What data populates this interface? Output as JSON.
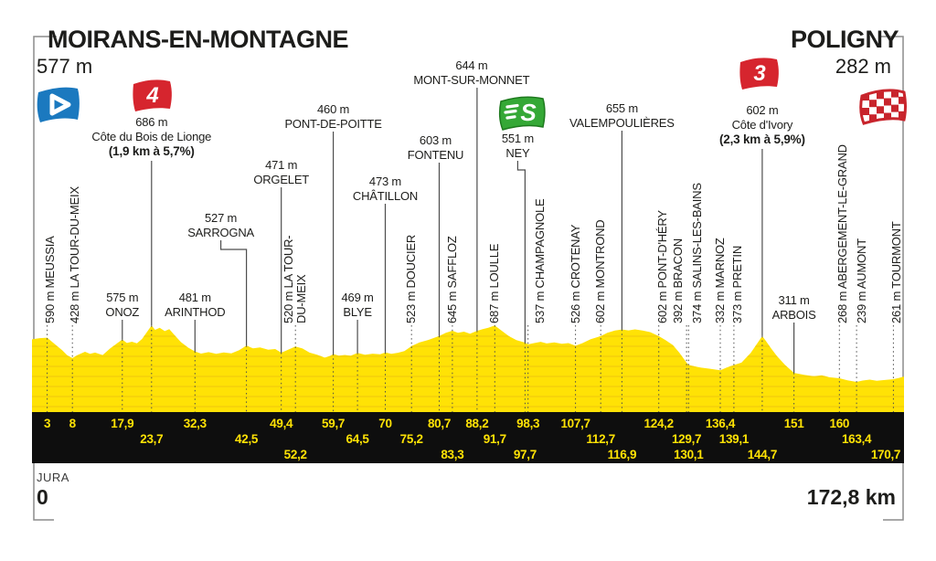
{
  "header": {
    "start": {
      "name": "MOIRANS-EN-MONTAGNE",
      "elevation": "577 m"
    },
    "finish": {
      "name": "POLIGNY",
      "elevation": "282 m"
    }
  },
  "footer": {
    "region": "JURA",
    "start_km": "0",
    "total_distance": "172,8 km"
  },
  "colors": {
    "profile_yellow": "#FFE205",
    "grid_yellow": "#EFC70E",
    "band_black": "#0E0E0E",
    "number_yellow": "#FFE205",
    "text": "#1D1D1B",
    "leader": "#4D4D4D",
    "frame": "#8C8C8C",
    "flag_red": "#D6252E",
    "flag_blue": "#1B79BF",
    "flag_green": "#35A836",
    "white": "#FFFFFF"
  },
  "icons": [
    {
      "name": "depart-flag",
      "glyph": "play-triangle",
      "color_key": "flag_blue"
    },
    {
      "name": "category-4-flag",
      "label": "4",
      "color_key": "flag_red"
    },
    {
      "name": "sprint-flag",
      "label": "S",
      "color_key": "flag_green"
    },
    {
      "name": "category-3-flag",
      "label": "3",
      "color_key": "flag_red"
    },
    {
      "name": "finish-flag",
      "glyph": "checkered",
      "color_key": "flag_red"
    }
  ],
  "chart_data": {
    "type": "area",
    "title": "Stage profile — Moirans-en-Montagne to Poligny (Jura)",
    "x_unit": "km",
    "y_unit": "m",
    "total_km": 172.8,
    "start_elevation_m": 577,
    "finish_elevation_m": 282,
    "waypoints": [
      {
        "name": "MEUSSIA",
        "elev": "590 m",
        "km": 3,
        "km_label": "3",
        "style": "v",
        "row": 1,
        "shift": 3
      },
      {
        "name": "LA TOUR-DU-MEIX",
        "elev": "428 m",
        "km": 8,
        "km_label": "8",
        "style": "v",
        "row": 1,
        "shift": 3
      },
      {
        "name": "ONOZ",
        "elev": "575 m",
        "km": 17.9,
        "km_label": "17,9",
        "style": "h",
        "row": 1,
        "label_y": 318
      },
      {
        "name": "Côte du Bois de Lionge",
        "elev": "686 m",
        "km": 23.7,
        "km_label": "23,7",
        "style": "c",
        "row": 2,
        "label_y": 126,
        "detail": "(1,9 km à 5,7%)",
        "category": "4",
        "icon": "category-4-flag"
      },
      {
        "name": "ARINTHOD",
        "elev": "481 m",
        "km": 32.3,
        "km_label": "32,3",
        "style": "h",
        "row": 1,
        "label_y": 318
      },
      {
        "name": "SARROGNA",
        "elev": "527 m",
        "km": 42.5,
        "km_label": "42,5",
        "style": "h",
        "row": 2,
        "label_y": 231,
        "shift": -28
      },
      {
        "name": "ORGELET",
        "elev": "471 m",
        "km": 49.4,
        "km_label": "49,4",
        "style": "h",
        "row": 1,
        "label_y": 173
      },
      {
        "name": "LA TOUR-DU-MEIX",
        "elev": "520 m",
        "km": 52.2,
        "km_label": "52,2",
        "style": "v",
        "row": 3,
        "lines": [
          "520 m LA TOUR-",
          "DU-MEIX"
        ]
      },
      {
        "name": "PONT-DE-POITTE",
        "elev": "460 m",
        "km": 59.7,
        "km_label": "59,7",
        "style": "h",
        "row": 1,
        "label_y": 112
      },
      {
        "name": "BLYE",
        "elev": "469 m",
        "km": 64.5,
        "km_label": "64,5",
        "style": "h",
        "row": 2,
        "label_y": 318
      },
      {
        "name": "CHÂTILLON",
        "elev": "473 m",
        "km": 70,
        "km_label": "70",
        "style": "h",
        "row": 1,
        "label_y": 191
      },
      {
        "name": "DOUCIER",
        "elev": "523 m",
        "km": 75.2,
        "km_label": "75,2",
        "style": "v",
        "row": 2
      },
      {
        "name": "FONTENU",
        "elev": "603 m",
        "km": 80.7,
        "km_label": "80,7",
        "style": "h",
        "row": 1,
        "label_y": 146,
        "shift": -4
      },
      {
        "name": "SAFFLOZ",
        "elev": "645 m",
        "km": 83.3,
        "km_label": "83,3",
        "style": "v",
        "row": 3
      },
      {
        "name": "MONT-SUR-MONNET",
        "elev": "644 m",
        "km": 88.2,
        "km_label": "88,2",
        "style": "h",
        "row": 1,
        "label_y": 64,
        "shift": -6
      },
      {
        "name": "LOULLE",
        "elev": "687 m",
        "km": 91.7,
        "km_label": "91,7",
        "style": "v",
        "row": 2
      },
      {
        "name": "NEY",
        "elev": "551 m",
        "km": 97.7,
        "km_label": "97,7",
        "style": "h",
        "row": 3,
        "label_y": 144,
        "shift": -8
      },
      {
        "name": "CHAMPAGNOLE",
        "elev": "537 m",
        "km": 98.3,
        "km_label": "98,3",
        "style": "v",
        "row": 1,
        "shift": 13
      },
      {
        "name": "CROTENAY",
        "elev": "526 m",
        "km": 107.7,
        "km_label": "107,7",
        "style": "v",
        "row": 1
      },
      {
        "name": "MONTROND",
        "elev": "602 m",
        "km": 112.7,
        "km_label": "112,7",
        "style": "v",
        "row": 2
      },
      {
        "name": "VALEMPOULIÈRES",
        "elev": "655 m",
        "km": 116.9,
        "km_label": "116,9",
        "style": "h",
        "row": 3,
        "label_y": 111
      },
      {
        "name": "PONT-D'HÉRY",
        "elev": "602 m",
        "km": 124.2,
        "km_label": "124,2",
        "style": "v",
        "row": 1,
        "shift": 4
      },
      {
        "name": "BRACON",
        "elev": "392 m",
        "km": 129.7,
        "km_label": "129,7",
        "style": "v",
        "row": 2,
        "shift": -9
      },
      {
        "name": "SALINS-LES-BAINS",
        "elev": "374 m",
        "km": 130.1,
        "km_label": "130,1",
        "style": "v",
        "row": 3,
        "shift": 10
      },
      {
        "name": "MARNOZ",
        "elev": "332 m",
        "km": 136.4,
        "km_label": "136,4",
        "style": "v",
        "row": 1
      },
      {
        "name": "PRETIN",
        "elev": "373 m",
        "km": 139.1,
        "km_label": "139,1",
        "style": "v",
        "row": 2,
        "shift": 4
      },
      {
        "name": "Côte d'Ivory",
        "elev": "602 m",
        "km": 144.7,
        "km_label": "144,7",
        "style": "c",
        "row": 3,
        "label_y": 113,
        "detail": "(2,3 km à 5,9%)",
        "category": "3",
        "icon": "category-3-flag"
      },
      {
        "name": "ARBOIS",
        "elev": "311 m",
        "km": 151,
        "km_label": "151",
        "style": "h",
        "row": 1,
        "label_y": 321
      },
      {
        "name": "ABERGEMENT-LE-GRAND",
        "elev": "268 m",
        "km": 160,
        "km_label": "160",
        "style": "v",
        "row": 1,
        "shift": 4
      },
      {
        "name": "AUMONT",
        "elev": "239 m",
        "km": 163.4,
        "km_label": "163,4",
        "style": "v",
        "row": 2,
        "shift": 6
      },
      {
        "name": "TOURMONT",
        "elev": "261 m",
        "km": 170.7,
        "km_label": "170,7",
        "style": "v",
        "row": 3,
        "shift": 4
      }
    ],
    "profile": [
      [
        0,
        577
      ],
      [
        1.5,
        586
      ],
      [
        3,
        590
      ],
      [
        4.5,
        540
      ],
      [
        6,
        490
      ],
      [
        7,
        450
      ],
      [
        8,
        428
      ],
      [
        9,
        452
      ],
      [
        10.5,
        478
      ],
      [
        11.5,
        462
      ],
      [
        12.5,
        472
      ],
      [
        14,
        452
      ],
      [
        15.5,
        505
      ],
      [
        16.5,
        535
      ],
      [
        17.9,
        575
      ],
      [
        18.8,
        548
      ],
      [
        19.8,
        558
      ],
      [
        20.8,
        545
      ],
      [
        21.8,
        580
      ],
      [
        23.7,
        686
      ],
      [
        24.4,
        652
      ],
      [
        25.3,
        668
      ],
      [
        26.3,
        642
      ],
      [
        27.2,
        658
      ],
      [
        28.2,
        612
      ],
      [
        29.5,
        555
      ],
      [
        31,
        510
      ],
      [
        32.3,
        481
      ],
      [
        33.5,
        464
      ],
      [
        35,
        475
      ],
      [
        36.5,
        462
      ],
      [
        38,
        473
      ],
      [
        39.5,
        465
      ],
      [
        41,
        490
      ],
      [
        42.5,
        527
      ],
      [
        43.8,
        505
      ],
      [
        45.2,
        513
      ],
      [
        46.8,
        494
      ],
      [
        48.2,
        500
      ],
      [
        49.4,
        471
      ],
      [
        50.6,
        492
      ],
      [
        52.2,
        520
      ],
      [
        53.6,
        504
      ],
      [
        55,
        472
      ],
      [
        56.5,
        455
      ],
      [
        58,
        432
      ],
      [
        59,
        444
      ],
      [
        59.7,
        460
      ],
      [
        60.8,
        448
      ],
      [
        62,
        453
      ],
      [
        63.2,
        447
      ],
      [
        64.5,
        469
      ],
      [
        66,
        455
      ],
      [
        67.5,
        463
      ],
      [
        69,
        458
      ],
      [
        70,
        473
      ],
      [
        71.2,
        462
      ],
      [
        72.5,
        470
      ],
      [
        73.8,
        483
      ],
      [
        75.2,
        523
      ],
      [
        76.8,
        552
      ],
      [
        78.5,
        572
      ],
      [
        80.7,
        603
      ],
      [
        82,
        628
      ],
      [
        83.3,
        645
      ],
      [
        84.4,
        628
      ],
      [
        85.6,
        638
      ],
      [
        86.8,
        622
      ],
      [
        88.2,
        644
      ],
      [
        89.3,
        657
      ],
      [
        90.4,
        668
      ],
      [
        91.7,
        687
      ],
      [
        93,
        648
      ],
      [
        94.5,
        602
      ],
      [
        96,
        570
      ],
      [
        97.7,
        551
      ],
      [
        98.3,
        537
      ],
      [
        99.5,
        547
      ],
      [
        100.8,
        557
      ],
      [
        102,
        544
      ],
      [
        103.5,
        552
      ],
      [
        105,
        541
      ],
      [
        106.3,
        547
      ],
      [
        107.7,
        526
      ],
      [
        109,
        546
      ],
      [
        110.7,
        578
      ],
      [
        112.7,
        602
      ],
      [
        114,
        628
      ],
      [
        115.5,
        647
      ],
      [
        116.9,
        655
      ],
      [
        118.2,
        648
      ],
      [
        119.5,
        656
      ],
      [
        121,
        647
      ],
      [
        122.5,
        634
      ],
      [
        124.2,
        602
      ],
      [
        125.5,
        572
      ],
      [
        127,
        532
      ],
      [
        128.3,
        470
      ],
      [
        129.7,
        392
      ],
      [
        130.1,
        374
      ],
      [
        131.3,
        362
      ],
      [
        132.6,
        352
      ],
      [
        134.2,
        344
      ],
      [
        136.4,
        332
      ],
      [
        137.6,
        352
      ],
      [
        139.1,
        373
      ],
      [
        140.6,
        392
      ],
      [
        142.4,
        468
      ],
      [
        144.7,
        602
      ],
      [
        145.4,
        566
      ],
      [
        146.4,
        508
      ],
      [
        147.6,
        445
      ],
      [
        149.2,
        375
      ],
      [
        151,
        311
      ],
      [
        153,
        296
      ],
      [
        155,
        284
      ],
      [
        156.5,
        291
      ],
      [
        158,
        276
      ],
      [
        160,
        268
      ],
      [
        161.6,
        252
      ],
      [
        163.4,
        239
      ],
      [
        164.6,
        250
      ],
      [
        166,
        257
      ],
      [
        167.4,
        248
      ],
      [
        169,
        254
      ],
      [
        170.7,
        261
      ],
      [
        171.8,
        271
      ],
      [
        172.8,
        282
      ]
    ],
    "ylim": [
      0,
      750
    ],
    "grid": "horizontal-lines-in-area",
    "legend": "none"
  }
}
